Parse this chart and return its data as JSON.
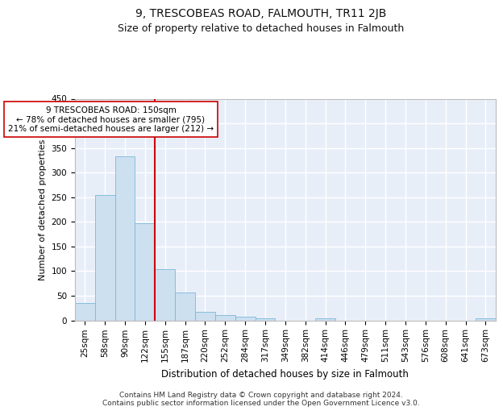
{
  "title": "9, TRESCOBEAS ROAD, FALMOUTH, TR11 2JB",
  "subtitle": "Size of property relative to detached houses in Falmouth",
  "xlabel": "Distribution of detached houses by size in Falmouth",
  "ylabel": "Number of detached properties",
  "bar_color": "#cce0f0",
  "bar_edgecolor": "#7ab8d9",
  "background_color": "#e8eef8",
  "grid_color": "#ffffff",
  "fig_color": "#ffffff",
  "categories": [
    "25sqm",
    "58sqm",
    "90sqm",
    "122sqm",
    "155sqm",
    "187sqm",
    "220sqm",
    "252sqm",
    "284sqm",
    "317sqm",
    "349sqm",
    "382sqm",
    "414sqm",
    "446sqm",
    "479sqm",
    "511sqm",
    "543sqm",
    "576sqm",
    "608sqm",
    "641sqm",
    "673sqm"
  ],
  "values": [
    35,
    255,
    333,
    197,
    104,
    57,
    18,
    10,
    7,
    4,
    0,
    0,
    4,
    0,
    0,
    0,
    0,
    0,
    0,
    0,
    4
  ],
  "ylim": [
    0,
    450
  ],
  "yticks": [
    0,
    50,
    100,
    150,
    200,
    250,
    300,
    350,
    400,
    450
  ],
  "vline_position": 3.5,
  "vline_color": "#cc0000",
  "annotation_text": "9 TRESCOBEAS ROAD: 150sqm\n← 78% of detached houses are smaller (795)\n21% of semi-detached houses are larger (212) →",
  "annotation_box_edgecolor": "#cc0000",
  "footer_line1": "Contains HM Land Registry data © Crown copyright and database right 2024.",
  "footer_line2": "Contains public sector information licensed under the Open Government Licence v3.0.",
  "title_fontsize": 10,
  "subtitle_fontsize": 9,
  "xlabel_fontsize": 8.5,
  "ylabel_fontsize": 8,
  "tick_fontsize": 7.5,
  "annotation_fontsize": 7.5,
  "footer_fontsize": 6.5
}
